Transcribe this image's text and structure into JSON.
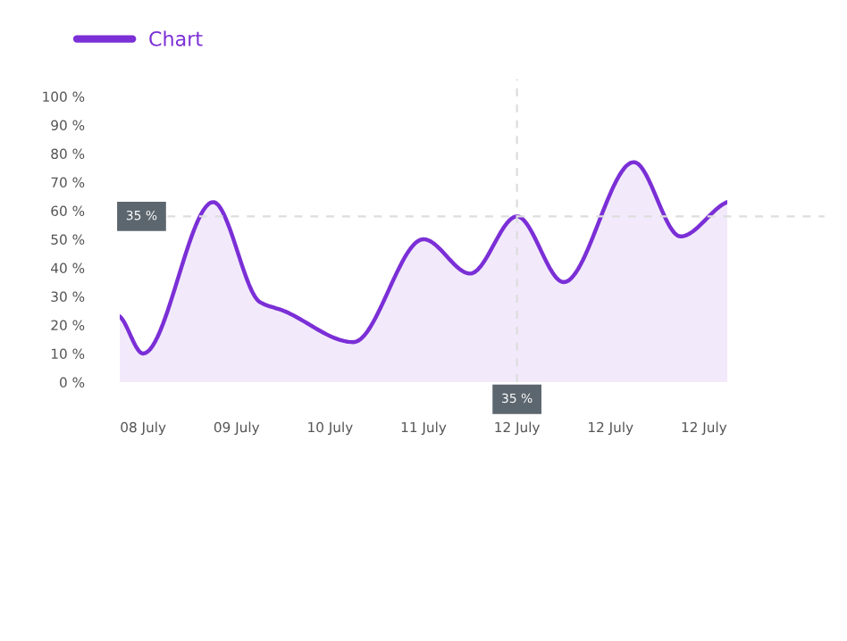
{
  "chart_data": {
    "type": "area",
    "categories": [
      null,
      "08 July",
      null,
      null,
      null,
      "09 July",
      null,
      null,
      null,
      "10 July",
      null,
      null,
      null,
      "11 July",
      null,
      null,
      null,
      "12 July",
      null,
      null,
      null,
      "12 July",
      null,
      null,
      null,
      "12 July",
      null
    ],
    "series": [
      {
        "name": "Chart",
        "color": "#7b2fd6",
        "values": [
          23,
          10,
          null,
          null,
          63,
          null,
          28,
          25,
          null,
          null,
          14,
          null,
          null,
          50,
          null,
          38,
          null,
          58,
          null,
          35,
          null,
          null,
          77,
          null,
          51,
          null,
          63
        ]
      }
    ],
    "ylim": [
      0,
      100
    ],
    "yticks": [
      {
        "value": 0,
        "label": "0 %"
      },
      {
        "value": 10,
        "label": "10 %"
      },
      {
        "value": 20,
        "label": "20 %"
      },
      {
        "value": 30,
        "label": "30 %"
      },
      {
        "value": 40,
        "label": "40 %"
      },
      {
        "value": 50,
        "label": "50 %"
      },
      {
        "value": 60,
        "label": "60 %"
      },
      {
        "value": 70,
        "label": "70 %"
      },
      {
        "value": 80,
        "label": "80 %"
      },
      {
        "value": 90,
        "label": "90 %"
      },
      {
        "value": 100,
        "label": "100 %"
      }
    ],
    "ref_lines": [
      {
        "axis": "y",
        "value": 58,
        "color": "#dddddd",
        "line_style": "dashed"
      },
      {
        "axis": "x",
        "value": "12 July",
        "color": "#dddddd",
        "line_style": "dashed"
      }
    ],
    "annotations": [
      "35 %",
      "35 %"
    ],
    "grid": false,
    "legend": "top left",
    "marker": "none",
    "line_style": "solid"
  }
}
